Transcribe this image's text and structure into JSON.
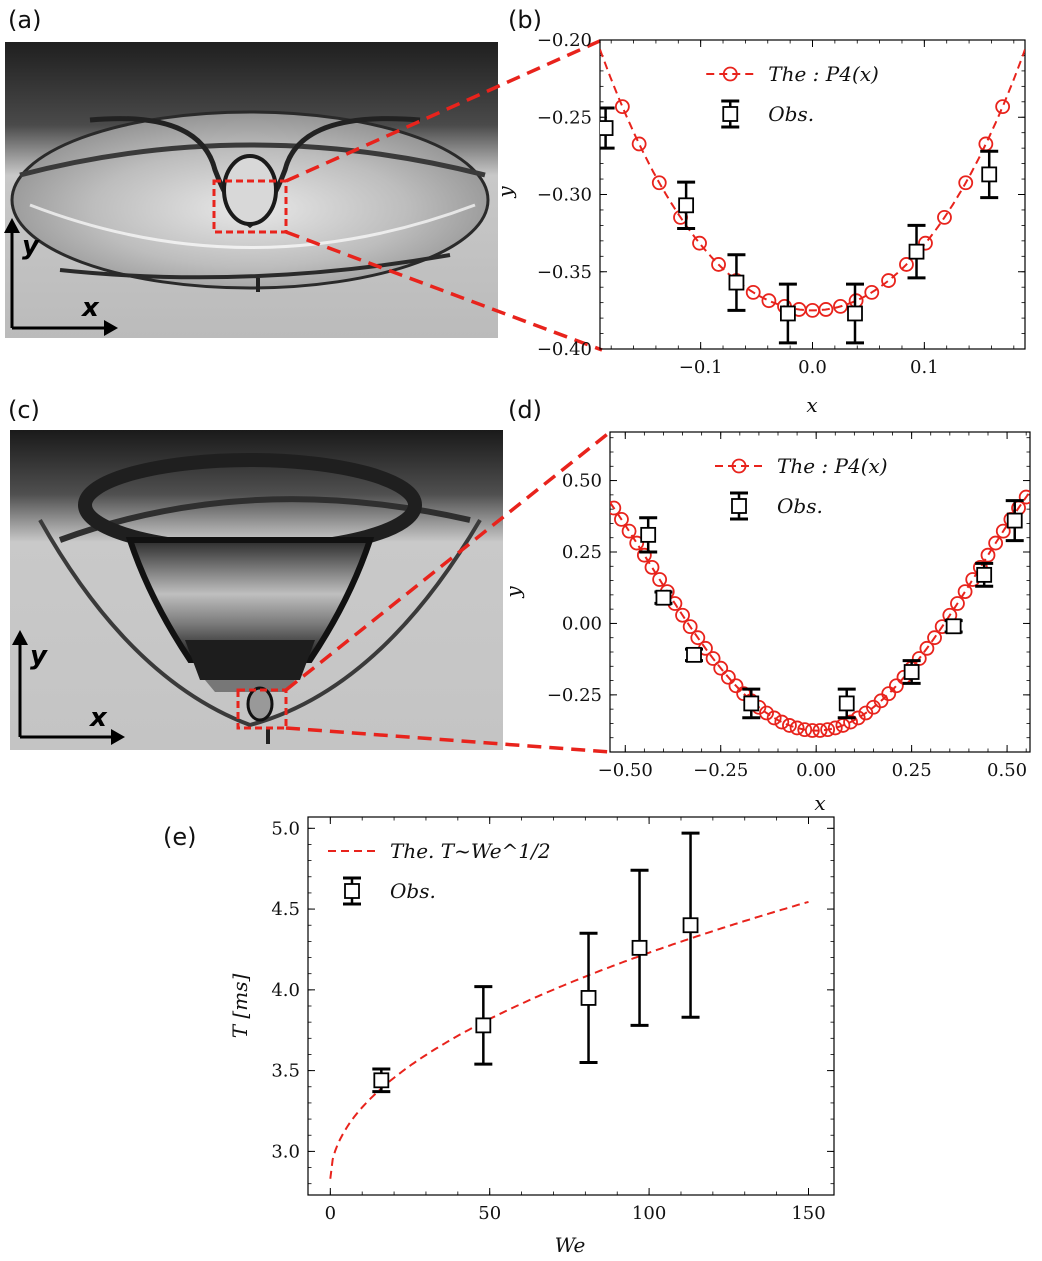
{
  "panels": {
    "a": {
      "label": "(a)",
      "axis_x": "x",
      "axis_y": "y"
    },
    "b": {
      "label": "(b)"
    },
    "c": {
      "label": "(c)",
      "axis_x": "x",
      "axis_y": "y"
    },
    "d": {
      "label": "(d)"
    },
    "e": {
      "label": "(e)"
    }
  },
  "colors": {
    "theory": "#e8231c",
    "observation": "#000000"
  },
  "chart_data": [
    {
      "id": "b",
      "type": "scatter",
      "xlabel": "x",
      "ylabel": "y",
      "xlim": [
        -0.19,
        0.19
      ],
      "ylim": [
        -0.4,
        -0.2
      ],
      "xticks": [
        -0.1,
        0.0,
        0.1
      ],
      "xtick_labels": [
        "−0.1",
        "0.0",
        "0.1"
      ],
      "yticks": [
        -0.4,
        -0.35,
        -0.3,
        -0.25,
        -0.2
      ],
      "ytick_labels": [
        "−0.40",
        "−0.35",
        "−0.30",
        "−0.25",
        "−0.20"
      ],
      "legend": {
        "position": "top-right",
        "entries": [
          "The :  P4(x)",
          "Obs."
        ]
      },
      "series": [
        {
          "name": "The :  P4(x)",
          "style": "dashed-line-circles",
          "curve": {
            "a0": -0.375,
            "a2": 4.1,
            "a4": 16
          },
          "marker_x": [
            -0.17,
            -0.155,
            -0.137,
            -0.118,
            -0.101,
            -0.084,
            -0.068,
            -0.053,
            -0.039,
            -0.025,
            -0.012,
            0.0,
            0.012,
            0.025,
            0.039,
            0.053,
            0.068,
            0.084,
            0.101,
            0.118,
            0.137,
            0.155,
            0.17
          ]
        },
        {
          "name": "Obs.",
          "style": "open-squares-errorbars",
          "x": [
            -0.185,
            -0.113,
            -0.068,
            -0.022,
            0.038,
            0.093,
            0.158
          ],
          "y": [
            -0.257,
            -0.307,
            -0.357,
            -0.377,
            -0.377,
            -0.337,
            -0.287
          ],
          "err": [
            0.013,
            0.015,
            0.018,
            0.019,
            0.019,
            0.017,
            0.015
          ]
        }
      ]
    },
    {
      "id": "d",
      "type": "scatter",
      "xlabel": "x",
      "ylabel": "y",
      "xlim": [
        -0.54,
        0.56
      ],
      "ylim": [
        -0.45,
        0.67
      ],
      "xticks": [
        -0.5,
        -0.25,
        0.0,
        0.25,
        0.5
      ],
      "xtick_labels": [
        "−0.50",
        "−0.25",
        "0.00",
        "0.25",
        "0.50"
      ],
      "yticks": [
        -0.25,
        0.0,
        0.25,
        0.5
      ],
      "ytick_labels": [
        "−0.25",
        "0.00",
        "0.25",
        "0.50"
      ],
      "legend": {
        "position": "top-right",
        "entries": [
          "The :  P4(x)",
          "Obs."
        ]
      },
      "series": [
        {
          "name": "The :  P4(x)",
          "style": "dashed-line-circles",
          "curve": {
            "a0": -0.375,
            "a2": 3.7,
            "a4": -3.3
          },
          "marker_x": [
            -0.53,
            -0.51,
            -0.49,
            -0.47,
            -0.45,
            -0.43,
            -0.41,
            -0.39,
            -0.37,
            -0.35,
            -0.33,
            -0.31,
            -0.29,
            -0.27,
            -0.25,
            -0.23,
            -0.21,
            -0.19,
            -0.17,
            -0.15,
            -0.13,
            -0.11,
            -0.09,
            -0.07,
            -0.05,
            -0.03,
            -0.01,
            0.01,
            0.03,
            0.05,
            0.07,
            0.09,
            0.11,
            0.13,
            0.15,
            0.17,
            0.19,
            0.21,
            0.23,
            0.25,
            0.27,
            0.29,
            0.31,
            0.33,
            0.35,
            0.37,
            0.39,
            0.41,
            0.43,
            0.45,
            0.47,
            0.49,
            0.51,
            0.53,
            0.55
          ]
        },
        {
          "name": "Obs.",
          "style": "open-squares-errorbars",
          "x": [
            -0.44,
            -0.4,
            -0.32,
            -0.17,
            0.08,
            0.25,
            0.36,
            0.44,
            0.52
          ],
          "y": [
            0.31,
            0.09,
            -0.11,
            -0.28,
            -0.28,
            -0.17,
            -0.01,
            0.17,
            0.36
          ],
          "err": [
            0.06,
            0.02,
            0.02,
            0.05,
            0.05,
            0.04,
            0.02,
            0.04,
            0.07
          ]
        }
      ]
    },
    {
      "id": "e",
      "type": "scatter",
      "xlabel": "We",
      "ylabel": "T [ms]",
      "xlim": [
        -7,
        158
      ],
      "ylim": [
        2.73,
        5.07
      ],
      "xticks": [
        0,
        50,
        100,
        150
      ],
      "xtick_labels": [
        "0",
        "50",
        "100",
        "150"
      ],
      "yticks": [
        3.0,
        3.5,
        4.0,
        4.5,
        5.0
      ],
      "ytick_labels": [
        "3.0",
        "3.5",
        "4.0",
        "4.5",
        "5.0"
      ],
      "legend": {
        "position": "top-left",
        "entries": [
          "The. T~We^1/2",
          "Obs."
        ]
      },
      "series": [
        {
          "name": "The. T~We^1/2",
          "style": "dashed-line",
          "curve": {
            "c0": 2.83,
            "c1": 0.14,
            "x_range": [
              0,
              150
            ]
          }
        },
        {
          "name": "Obs.",
          "style": "open-squares-errorbars",
          "x": [
            16,
            48,
            81,
            97,
            113
          ],
          "y": [
            3.44,
            3.78,
            3.95,
            4.26,
            4.4
          ],
          "err_low": [
            0.07,
            0.24,
            0.4,
            0.48,
            0.57
          ],
          "err_high": [
            0.07,
            0.24,
            0.4,
            0.48,
            0.57
          ]
        }
      ]
    }
  ]
}
